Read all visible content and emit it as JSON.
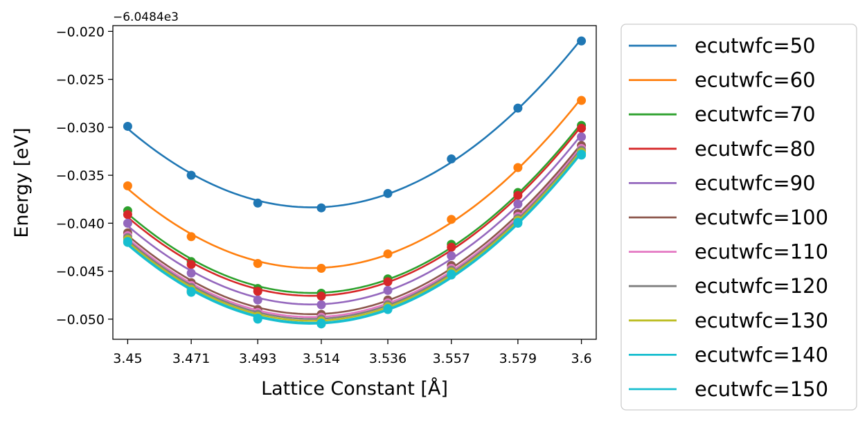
{
  "chart_data": {
    "type": "line",
    "xlabel": "Lattice Constant [Å]",
    "ylabel": "Energy [eV]",
    "offset_text": "−6.0484e3",
    "x": [
      3.45,
      3.471,
      3.493,
      3.514,
      3.536,
      3.557,
      3.579,
      3.6
    ],
    "x_tick_labels": [
      "3.45",
      "3.471",
      "3.493",
      "3.514",
      "3.536",
      "3.557",
      "3.579",
      "3.6"
    ],
    "y_ticks": [
      -0.05,
      -0.045,
      -0.04,
      -0.035,
      -0.03,
      -0.025,
      -0.02
    ],
    "y_tick_labels": [
      "−0.050",
      "−0.045",
      "−0.040",
      "−0.035",
      "−0.030",
      "−0.025",
      "−0.020"
    ],
    "xlim": [
      3.4451,
      3.6049
    ],
    "ylim": [
      -0.0521,
      -0.0194
    ],
    "grid": false,
    "legend_position": "outside-right",
    "series": [
      {
        "name": "ecutwfc=50",
        "color": "#1f77b4",
        "values": [
          -0.0299,
          -0.035,
          -0.0379,
          -0.0384,
          -0.0369,
          -0.0333,
          -0.028,
          -0.021
        ]
      },
      {
        "name": "ecutwfc=60",
        "color": "#ff7f0e",
        "values": [
          -0.0361,
          -0.0414,
          -0.0442,
          -0.0447,
          -0.0432,
          -0.0396,
          -0.0342,
          -0.0272
        ]
      },
      {
        "name": "ecutwfc=70",
        "color": "#2ca02c",
        "values": [
          -0.0387,
          -0.044,
          -0.0468,
          -0.0473,
          -0.0458,
          -0.0422,
          -0.0368,
          -0.0298
        ]
      },
      {
        "name": "ecutwfc=80",
        "color": "#d62728",
        "values": [
          -0.0391,
          -0.0443,
          -0.0471,
          -0.0476,
          -0.0461,
          -0.0425,
          -0.0371,
          -0.0301
        ]
      },
      {
        "name": "ecutwfc=90",
        "color": "#9467bd",
        "values": [
          -0.04,
          -0.0452,
          -0.048,
          -0.0485,
          -0.047,
          -0.0434,
          -0.038,
          -0.031
        ]
      },
      {
        "name": "ecutwfc=100",
        "color": "#8c564b",
        "values": [
          -0.041,
          -0.0462,
          -0.049,
          -0.0495,
          -0.048,
          -0.0444,
          -0.039,
          -0.0319
        ]
      },
      {
        "name": "ecutwfc=110",
        "color": "#e377c2",
        "values": [
          -0.0413,
          -0.0465,
          -0.0493,
          -0.0498,
          -0.0483,
          -0.0447,
          -0.0393,
          -0.0322
        ]
      },
      {
        "name": "ecutwfc=120",
        "color": "#7f7f7f",
        "values": [
          -0.0415,
          -0.0467,
          -0.0495,
          -0.05,
          -0.0485,
          -0.0449,
          -0.0395,
          -0.0324
        ]
      },
      {
        "name": "ecutwfc=130",
        "color": "#bcbd22",
        "values": [
          -0.0417,
          -0.0469,
          -0.0497,
          -0.0502,
          -0.0487,
          -0.0451,
          -0.0397,
          -0.0326
        ]
      },
      {
        "name": "ecutwfc=140",
        "color": "#17becf",
        "values": [
          -0.0419,
          -0.0471,
          -0.0499,
          -0.0504,
          -0.0489,
          -0.0453,
          -0.0399,
          -0.0328
        ]
      },
      {
        "name": "ecutwfc=150",
        "color": "#17becf",
        "values": [
          -0.042,
          -0.0472,
          -0.05,
          -0.0505,
          -0.049,
          -0.0454,
          -0.04,
          -0.0329
        ]
      }
    ]
  }
}
